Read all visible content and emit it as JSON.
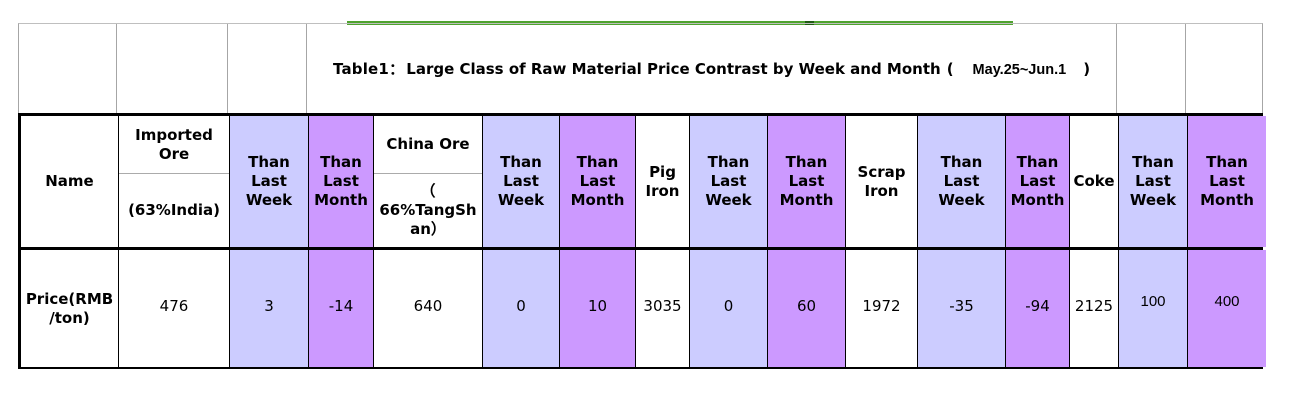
{
  "title": {
    "prefix": "Table1：",
    "main": "Large Class of Raw Material Price Contrast by Week and Month",
    "open_paren": "(",
    "period": "May.25~Jun.1",
    "close_paren": ")"
  },
  "decoration": {
    "green_line_color": "#4FA32F",
    "green_line_tick_color": "#1F5C13"
  },
  "palette": {
    "than_last_week_fill": "#CCCCFF",
    "than_last_month_fill": "#CC99FF",
    "grid_black": "#000000",
    "grid_gray": "#A6A6A6"
  },
  "table": {
    "row_label": "Price(RMB\n/ton)",
    "columns": [
      {
        "header": "Name",
        "value": "Price(RMB\n/ton)",
        "fill": "white"
      },
      {
        "header_top": "Imported\nOre",
        "header_bottom": "(63%India)",
        "value": "476",
        "fill": "white"
      },
      {
        "header": "Than\nLast\nWeek",
        "value": "3",
        "fill": "lavender"
      },
      {
        "header": "Than\nLast\nMonth",
        "value": "-14",
        "fill": "purple"
      },
      {
        "header_top": "China Ore",
        "header_bottom": "（\n66%TangSh\nan）",
        "value": "640",
        "fill": "white"
      },
      {
        "header": "Than\nLast\nWeek",
        "value": "0",
        "fill": "lavender"
      },
      {
        "header": "Than\nLast\nMonth",
        "value": "10",
        "fill": "purple"
      },
      {
        "header": "Pig\nIron",
        "value": "3035",
        "fill": "white"
      },
      {
        "header": "Than\nLast\nWeek",
        "value": "0",
        "fill": "lavender"
      },
      {
        "header": "Than\nLast\nMonth",
        "value": "60",
        "fill": "purple"
      },
      {
        "header": "Scrap\nIron",
        "value": "1972",
        "fill": "white"
      },
      {
        "header": "Than\nLast\nWeek",
        "value": "-35",
        "fill": "lavender"
      },
      {
        "header": "Than\nLast\nMonth",
        "value": "-94",
        "fill": "purple"
      },
      {
        "header": "Coke",
        "value": "2125",
        "fill": "white"
      },
      {
        "header": "Than\nLast\nWeek",
        "value": "100",
        "fill": "lavender"
      },
      {
        "header": "Than\nLast\nMonth",
        "value": "400",
        "fill": "purple"
      }
    ]
  }
}
